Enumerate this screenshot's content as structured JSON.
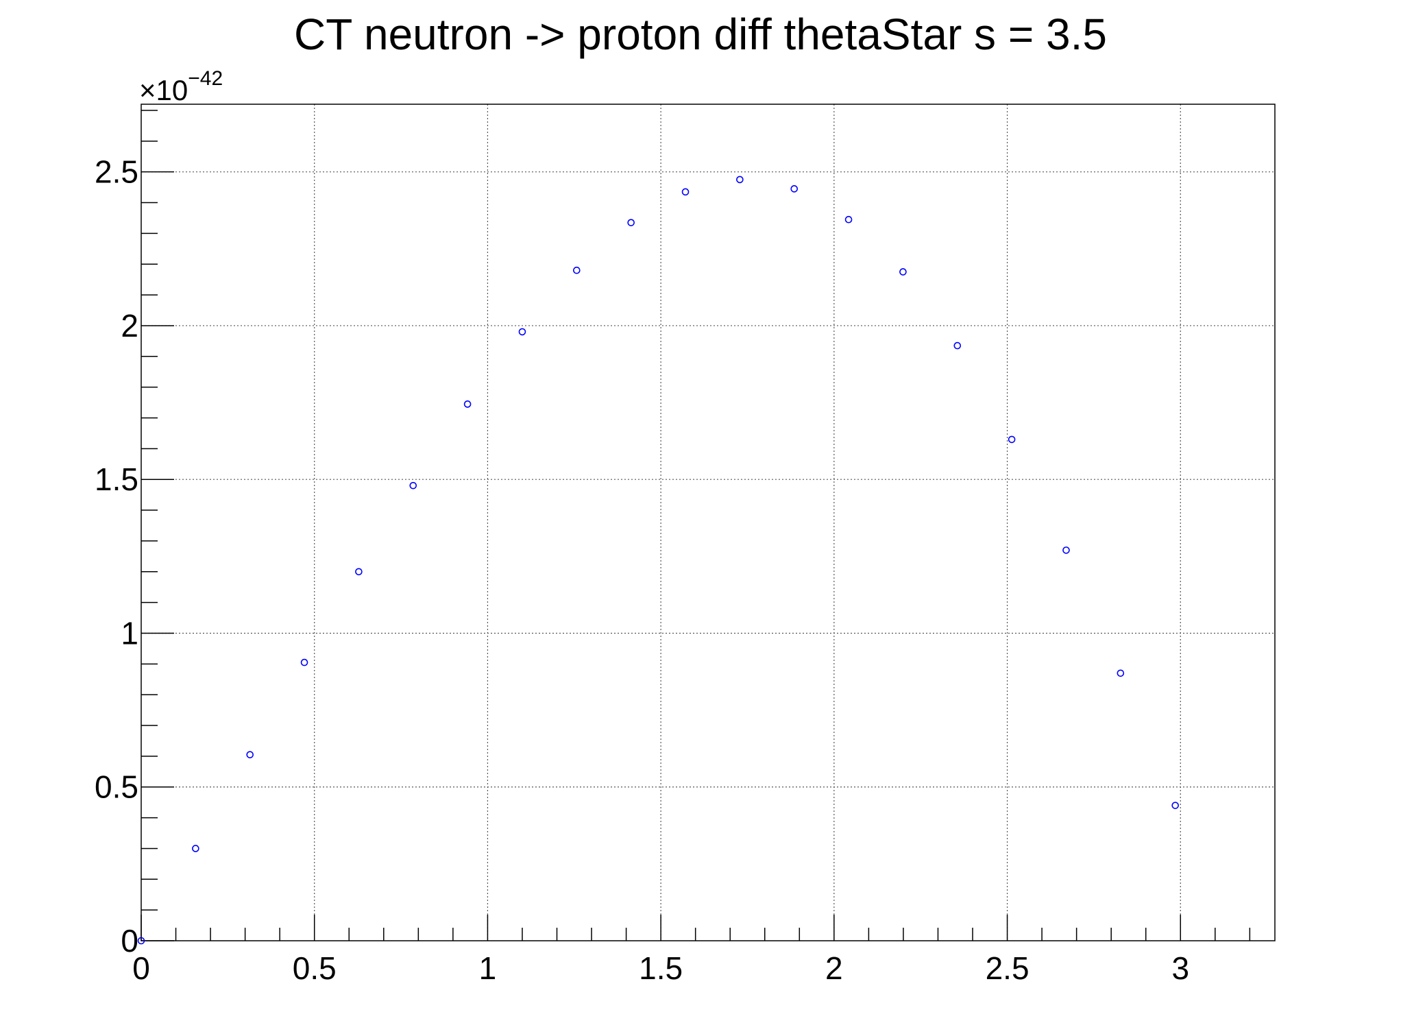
{
  "chart_data": {
    "type": "scatter",
    "title": "CT neutron -> proton diff thetaStar s = 3.5",
    "xlabel": "",
    "ylabel": "",
    "y_multiplier": {
      "base": "×10",
      "exponent": "−42"
    },
    "xlim": [
      0,
      3.2725
    ],
    "ylim": [
      0,
      2.72
    ],
    "x_ticks": [
      0,
      0.5,
      1,
      1.5,
      2,
      2.5,
      3
    ],
    "x_tick_labels": [
      "0",
      "0.5",
      "1",
      "1.5",
      "2",
      "2.5",
      "3"
    ],
    "y_ticks": [
      0,
      0.5,
      1,
      1.5,
      2,
      2.5
    ],
    "y_tick_labels": [
      "0",
      "0.5",
      "1",
      "1.5",
      "2",
      "2.5"
    ],
    "grid": true,
    "marker": "open-circle",
    "marker_color": "#0000ff",
    "series": [
      {
        "x": [
          0,
          0.157,
          0.314,
          0.471,
          0.628,
          0.785,
          0.942,
          1.1,
          1.257,
          1.414,
          1.571,
          1.728,
          1.885,
          2.042,
          2.199,
          2.356,
          2.513,
          2.67,
          2.827,
          2.985
        ],
        "y": [
          0,
          0.3,
          0.605,
          0.905,
          1.2,
          1.48,
          1.745,
          1.98,
          2.18,
          2.335,
          2.435,
          2.475,
          2.445,
          2.345,
          2.175,
          1.935,
          1.63,
          1.27,
          0.87,
          0.44
        ]
      }
    ]
  }
}
